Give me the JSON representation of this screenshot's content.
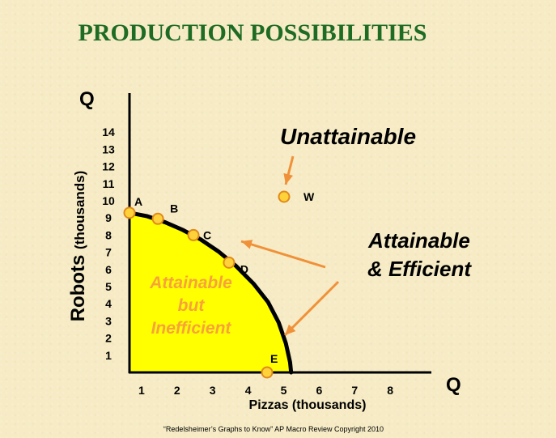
{
  "colors": {
    "background": "#f6ebc4",
    "title": "#1e6b24",
    "region_fill": "#ffff00",
    "point_fill": "#ffd23a",
    "point_stroke": "#e08a1a",
    "arrow": "#f0913a",
    "region_text": "#f7a23a"
  },
  "chart_data": {
    "type": "line",
    "title": "PRODUCTION POSSIBILITIES",
    "xlabel": "Pizzas (thousands)",
    "ylabel": "Robots (thousands)",
    "x_axis_symbol": "Q",
    "y_axis_symbol": "Q",
    "x_ticks": [
      1,
      2,
      3,
      4,
      5,
      6,
      7,
      8
    ],
    "y_ticks": [
      1,
      2,
      3,
      4,
      5,
      6,
      7,
      8,
      9,
      10,
      11,
      12,
      13,
      14
    ],
    "xlim": [
      0,
      8.5
    ],
    "ylim": [
      0,
      14
    ],
    "grid": false,
    "curve": [
      {
        "x": 0,
        "y": 9.3
      },
      {
        "x": 0.5,
        "y": 9.1
      },
      {
        "x": 1,
        "y": 8.75
      },
      {
        "x": 1.5,
        "y": 8.3
      },
      {
        "x": 2,
        "y": 7.75
      },
      {
        "x": 2.5,
        "y": 7.05
      },
      {
        "x": 3,
        "y": 6.2
      },
      {
        "x": 3.5,
        "y": 5.15
      },
      {
        "x": 3.9,
        "y": 4.1
      },
      {
        "x": 4.2,
        "y": 2.9
      },
      {
        "x": 4.4,
        "y": 1.7
      },
      {
        "x": 4.52,
        "y": 0.6
      },
      {
        "x": 4.55,
        "y": 0
      }
    ],
    "points": [
      {
        "label": "A",
        "x": 0,
        "y": 9.3
      },
      {
        "label": "B",
        "x": 0.8,
        "y": 8.95
      },
      {
        "label": "C",
        "x": 1.8,
        "y": 8.0
      },
      {
        "label": "D",
        "x": 2.8,
        "y": 6.4
      },
      {
        "label": "E",
        "x": 3.9,
        "y": 0
      },
      {
        "label": "W",
        "x": 4.4,
        "y": 8.0
      }
    ],
    "annotations": {
      "unattainable": "Unattainable",
      "efficient_line1": "Attainable",
      "efficient_line2": "& Efficient",
      "inefficient_line1": "Attainable",
      "inefficient_line2": "but",
      "inefficient_line3": "Inefficient"
    }
  },
  "footer": "“Redelsheimer’s Graphs to Know”  AP Macro Review Copyright 2010"
}
